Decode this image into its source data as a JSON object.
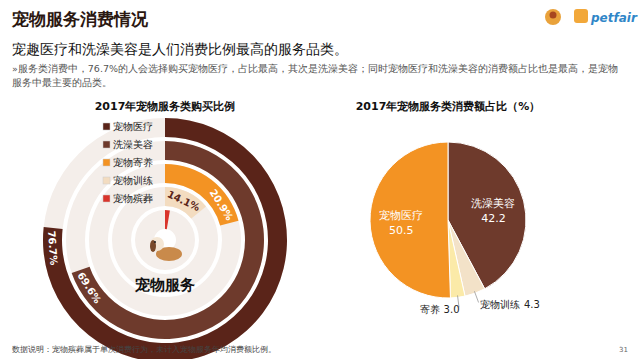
{
  "page": {
    "title": "宠物服务消费情况",
    "subtitle": "宠趣医疗和洗澡美容是人们消费比例最高的服务品类。",
    "note": "»服务类消费中，76.7%的人会选择购买宠物医疗，占比最高，其次是洗澡美容；同时宠物医疗和洗澡美容的消费额占比也是最高，是宠物服务中最主要的品类。",
    "footnote": "数据说明：宠物殡葬属于单次消费行为，未计入宠物服务年均消费额比例。",
    "page_number": "31",
    "brand": "petfair"
  },
  "chart_data": [
    {
      "type": "radial_bar",
      "title": "2017年宠物服务类购买比例",
      "annotation": "宠物服务",
      "categories": [
        "宠物医疗",
        "洗澡美容",
        "宠物寄养",
        "宠物训练",
        "宠物殡葬"
      ],
      "values": [
        76.7,
        69.6,
        20.9,
        14.1,
        2.6
      ],
      "value_labels": [
        "76.7%",
        "69.6%",
        "20.9%",
        "14.1%",
        null
      ],
      "colors": [
        "#5a2419",
        "#6e3a2c",
        "#f39323",
        "#f3dcc0",
        "#d9342b"
      ],
      "ylim": [
        0,
        100
      ],
      "data_labels": true,
      "legend": "top-left"
    },
    {
      "type": "pie",
      "title": "2017年宠物服务类消费额占比（%）",
      "categories": [
        "洗澡美容",
        "宠物训练",
        "寄养",
        "宠物医疗"
      ],
      "values": [
        42.2,
        4.3,
        3.0,
        50.5
      ],
      "value_labels": [
        "42.2",
        "4.3",
        "3.0",
        "50.5"
      ],
      "colors": [
        "#6e3a2c",
        "#f3e2c8",
        "#fbeaa8",
        "#f39323"
      ],
      "data_labels": true
    }
  ]
}
